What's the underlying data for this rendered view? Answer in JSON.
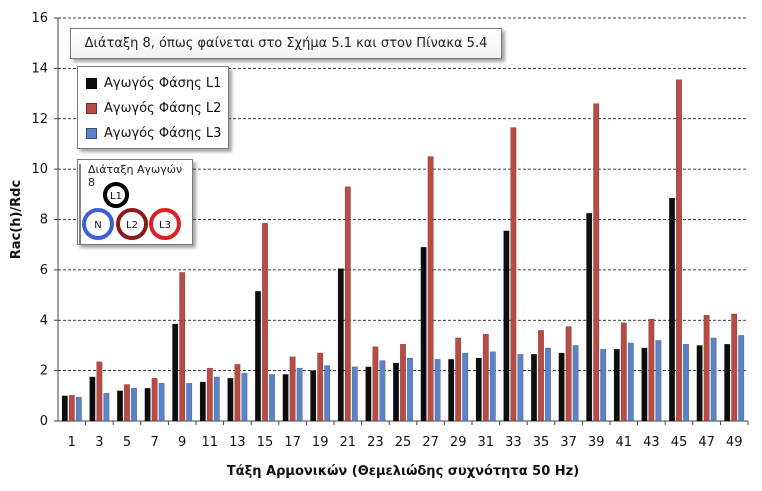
{
  "chart_data": {
    "type": "bar",
    "title": "",
    "annotation": "Διάταξη 8, όπως φαίνεται στο Σχήμα 5.1 και στον Πίνακα 5.4",
    "xlabel": "Τάξη Αρμονικών (Θεμελιώδης συχνότητα 50 Hz)",
    "ylabel": "Rac(h)/Rdc",
    "ylim": [
      0,
      16
    ],
    "yticks": [
      "0",
      "2",
      "4",
      "6",
      "8",
      "10",
      "12",
      "14",
      "16"
    ],
    "grid": "horizontal dashed",
    "legend_position": "top-left",
    "categories": [
      "1",
      "3",
      "5",
      "7",
      "9",
      "11",
      "13",
      "15",
      "17",
      "19",
      "21",
      "23",
      "25",
      "27",
      "29",
      "31",
      "33",
      "35",
      "37",
      "39",
      "41",
      "43",
      "45",
      "47",
      "49"
    ],
    "series": [
      {
        "name": "Αγωγός Φάσης L1",
        "color": "#0d0d0d",
        "values": [
          1.0,
          1.75,
          1.2,
          1.3,
          3.85,
          1.55,
          1.7,
          5.15,
          1.85,
          2.0,
          6.05,
          2.15,
          2.3,
          6.9,
          2.45,
          2.5,
          7.55,
          2.65,
          2.7,
          8.25,
          2.85,
          2.9,
          8.85,
          3.0,
          3.05
        ]
      },
      {
        "name": "Αγωγός Φάσης L2",
        "color": "#b84b44",
        "values": [
          1.02,
          2.35,
          1.45,
          1.7,
          5.9,
          2.1,
          2.25,
          7.85,
          2.55,
          2.7,
          9.3,
          2.95,
          3.05,
          10.5,
          3.3,
          3.45,
          11.65,
          3.6,
          3.75,
          12.6,
          3.9,
          4.05,
          13.55,
          4.2,
          4.25
        ]
      },
      {
        "name": "Αγωγός Φάσης L3",
        "color": "#5b84c8",
        "values": [
          0.95,
          1.1,
          1.3,
          1.5,
          1.5,
          1.75,
          1.9,
          1.85,
          2.1,
          2.2,
          2.15,
          2.4,
          2.5,
          2.45,
          2.7,
          2.75,
          2.65,
          2.9,
          3.0,
          2.85,
          3.1,
          3.2,
          3.05,
          3.3,
          3.4
        ]
      }
    ],
    "inset": {
      "title": "Διάταξη Αγωγών 8",
      "conductors": [
        {
          "label": "L1",
          "color": "#000000"
        },
        {
          "label": "N",
          "color": "#3b5fd8"
        },
        {
          "label": "L2",
          "color": "#8b1a1a"
        },
        {
          "label": "L3",
          "color": "#e02020"
        }
      ]
    }
  }
}
